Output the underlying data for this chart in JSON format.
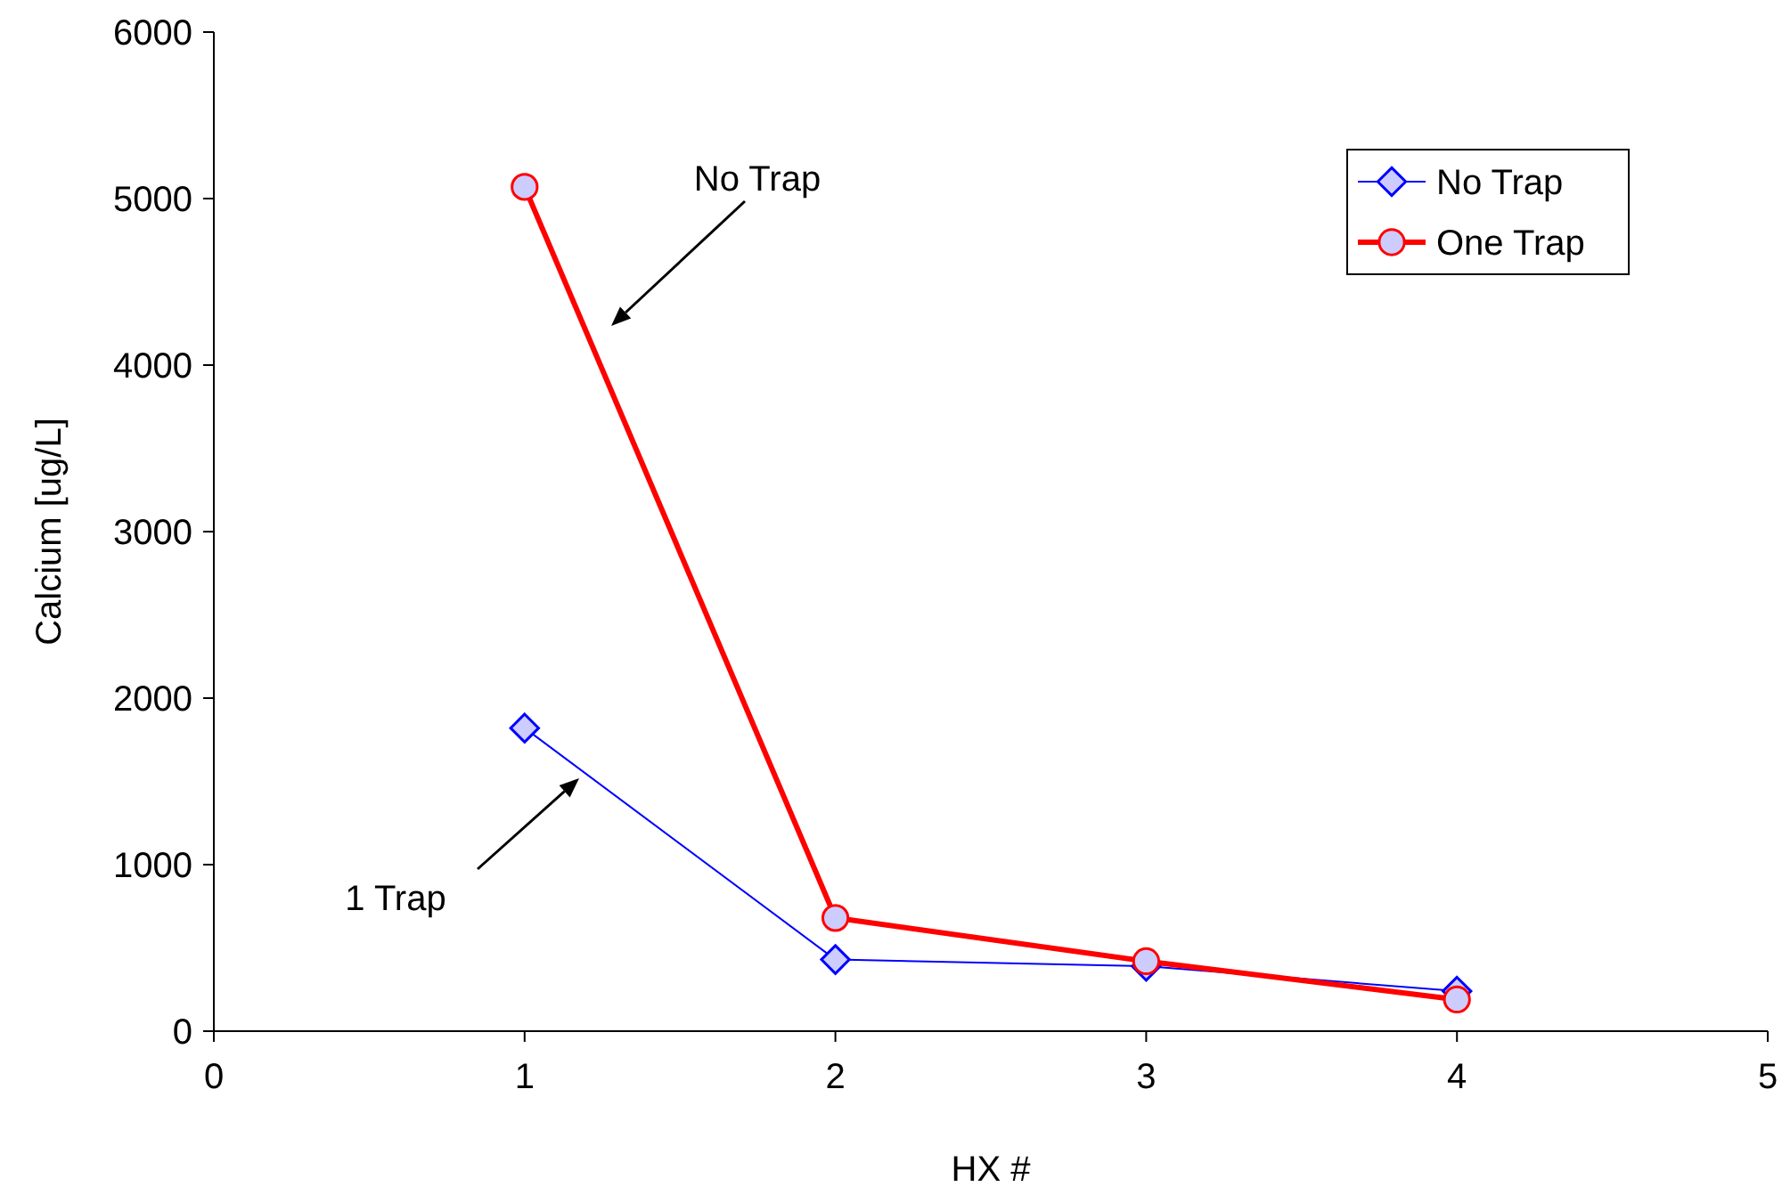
{
  "chart_data": {
    "type": "line",
    "xlabel": "HX #",
    "ylabel": "Calcium [ug/L]",
    "x": [
      1,
      2,
      3,
      4
    ],
    "series": [
      {
        "name": "No Trap",
        "color": "#0000ff",
        "marker": "diamond",
        "values": [
          1820,
          430,
          390,
          240
        ]
      },
      {
        "name": "One Trap",
        "color": "#ff0000",
        "marker": "circle",
        "values": [
          5070,
          680,
          420,
          190
        ]
      }
    ],
    "xlim": [
      0,
      5
    ],
    "xticks": [
      0,
      1,
      2,
      3,
      4,
      5
    ],
    "ylim": [
      0,
      6000
    ],
    "yticks": [
      0,
      1000,
      2000,
      3000,
      4000,
      5000,
      6000
    ],
    "grid": false,
    "legend": "top right",
    "line_style": "solid",
    "annotations": [
      "No Trap",
      "1 Trap"
    ]
  }
}
